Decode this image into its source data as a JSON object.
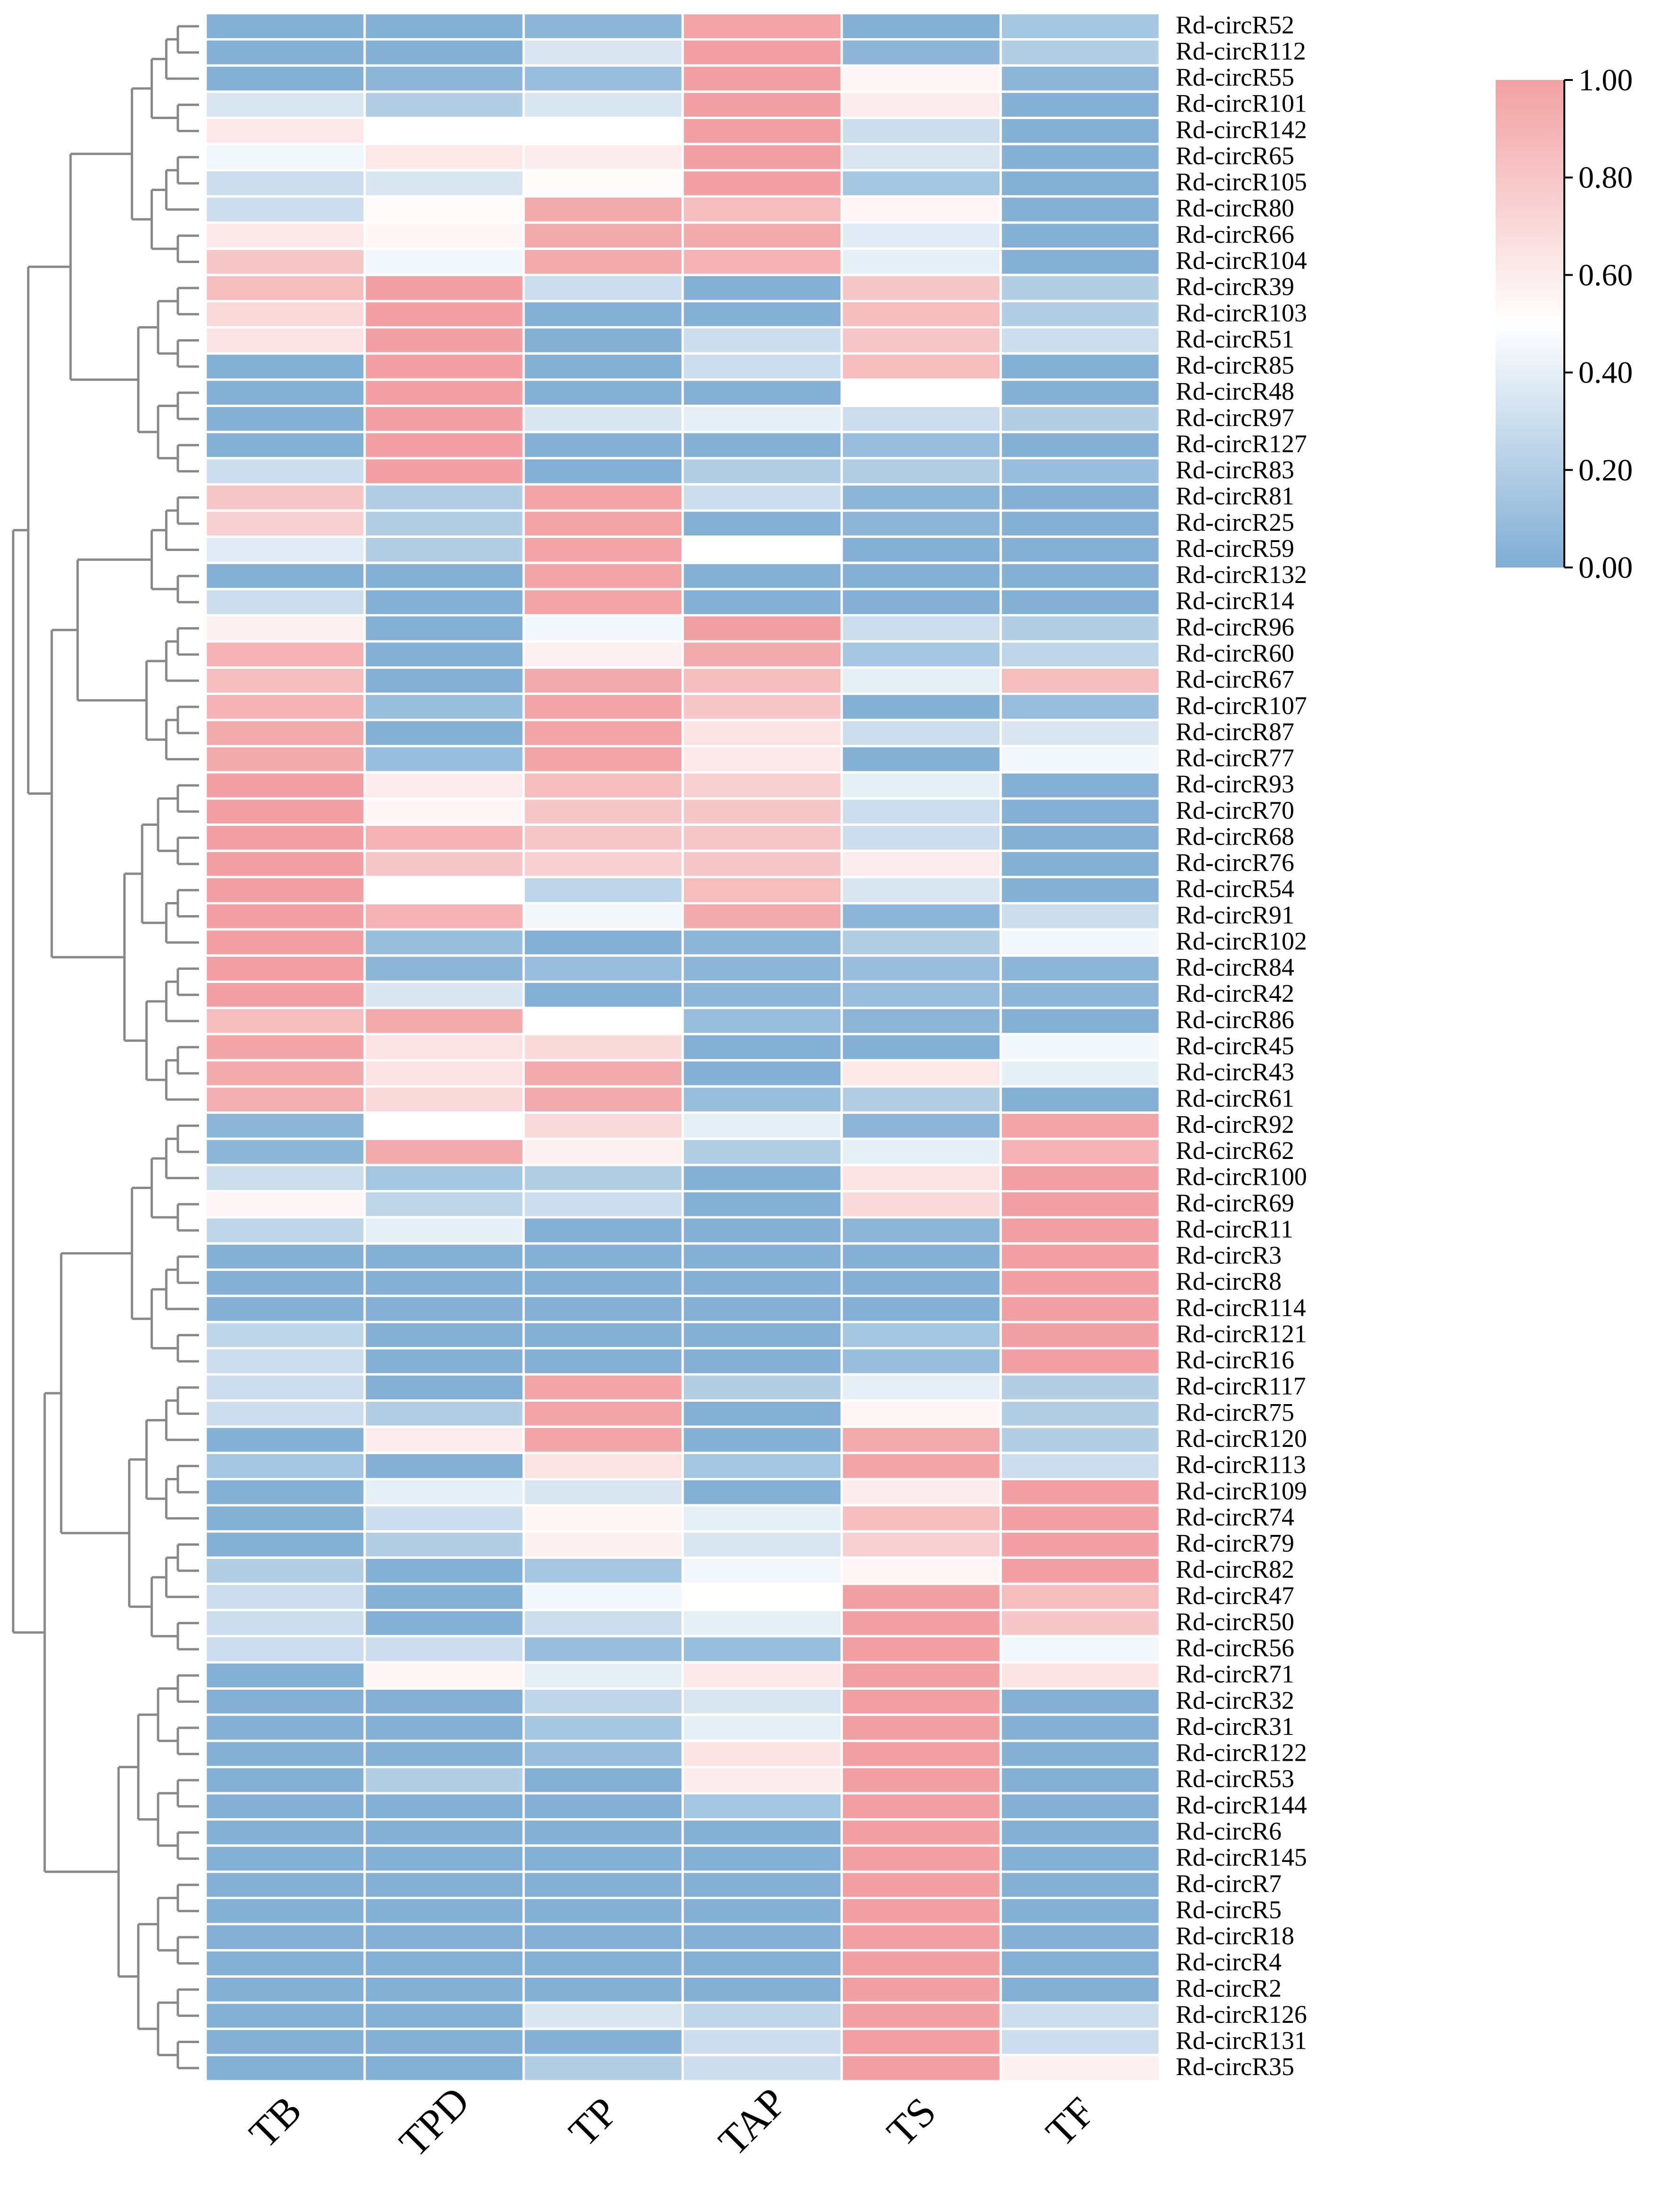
{
  "chart_data": {
    "type": "heatmap",
    "title": "",
    "xlabel": "",
    "ylabel": "",
    "x_categories": [
      "TB",
      "TPD",
      "TP",
      "TAP",
      "TS",
      "TF"
    ],
    "y_categories": [
      "Rd-circR52",
      "Rd-circR112",
      "Rd-circR55",
      "Rd-circR101",
      "Rd-circR142",
      "Rd-circR65",
      "Rd-circR105",
      "Rd-circR80",
      "Rd-circR66",
      "Rd-circR104",
      "Rd-circR39",
      "Rd-circR103",
      "Rd-circR51",
      "Rd-circR85",
      "Rd-circR48",
      "Rd-circR97",
      "Rd-circR127",
      "Rd-circR83",
      "Rd-circR81",
      "Rd-circR25",
      "Rd-circR59",
      "Rd-circR132",
      "Rd-circR14",
      "Rd-circR96",
      "Rd-circR60",
      "Rd-circR67",
      "Rd-circR107",
      "Rd-circR87",
      "Rd-circR77",
      "Rd-circR93",
      "Rd-circR70",
      "Rd-circR68",
      "Rd-circR76",
      "Rd-circR54",
      "Rd-circR91",
      "Rd-circR102",
      "Rd-circR84",
      "Rd-circR42",
      "Rd-circR86",
      "Rd-circR45",
      "Rd-circR43",
      "Rd-circR61",
      "Rd-circR92",
      "Rd-circR62",
      "Rd-circR100",
      "Rd-circR69",
      "Rd-circR11",
      "Rd-circR3",
      "Rd-circR8",
      "Rd-circR114",
      "Rd-circR121",
      "Rd-circR16",
      "Rd-circR117",
      "Rd-circR75",
      "Rd-circR120",
      "Rd-circR113",
      "Rd-circR109",
      "Rd-circR74",
      "Rd-circR79",
      "Rd-circR82",
      "Rd-circR47",
      "Rd-circR50",
      "Rd-circR56",
      "Rd-circR71",
      "Rd-circR32",
      "Rd-circR31",
      "Rd-circR122",
      "Rd-circR53",
      "Rd-circR144",
      "Rd-circR6",
      "Rd-circR145",
      "Rd-circR7",
      "Rd-circR5",
      "Rd-circR18",
      "Rd-circR4",
      "Rd-circR2",
      "Rd-circR126",
      "Rd-circR131",
      "Rd-circR35"
    ],
    "values": [
      [
        0.02,
        0.02,
        0.05,
        0.98,
        0.02,
        0.15
      ],
      [
        0.02,
        0.02,
        0.35,
        1.0,
        0.05,
        0.2
      ],
      [
        0.02,
        0.05,
        0.1,
        1.0,
        0.55,
        0.05
      ],
      [
        0.35,
        0.2,
        0.35,
        1.0,
        0.6,
        0.02
      ],
      [
        0.62,
        0.5,
        0.5,
        1.0,
        0.3,
        0.02
      ],
      [
        0.45,
        0.62,
        0.6,
        1.0,
        0.35,
        0.02
      ],
      [
        0.3,
        0.35,
        0.52,
        1.0,
        0.15,
        0.02
      ],
      [
        0.3,
        0.52,
        0.95,
        0.85,
        0.55,
        0.02
      ],
      [
        0.62,
        0.55,
        0.95,
        0.95,
        0.38,
        0.02
      ],
      [
        0.8,
        0.45,
        0.95,
        0.9,
        0.4,
        0.02
      ],
      [
        0.85,
        1.0,
        0.3,
        0.02,
        0.8,
        0.2
      ],
      [
        0.7,
        1.0,
        0.02,
        0.02,
        0.85,
        0.2
      ],
      [
        0.65,
        1.0,
        0.02,
        0.3,
        0.8,
        0.3
      ],
      [
        0.02,
        1.0,
        0.02,
        0.3,
        0.85,
        0.02
      ],
      [
        0.02,
        1.0,
        0.02,
        0.02,
        0.5,
        0.02
      ],
      [
        0.02,
        1.0,
        0.35,
        0.4,
        0.3,
        0.2
      ],
      [
        0.02,
        1.0,
        0.02,
        0.02,
        0.1,
        0.02
      ],
      [
        0.3,
        1.0,
        0.02,
        0.2,
        0.2,
        0.1
      ],
      [
        0.8,
        0.2,
        0.98,
        0.3,
        0.05,
        0.02
      ],
      [
        0.75,
        0.2,
        0.98,
        0.02,
        0.05,
        0.02
      ],
      [
        0.38,
        0.2,
        0.98,
        0.5,
        0.02,
        0.02
      ],
      [
        0.02,
        0.02,
        0.98,
        0.02,
        0.02,
        0.02
      ],
      [
        0.3,
        0.02,
        0.98,
        0.02,
        0.02,
        0.02
      ],
      [
        0.58,
        0.02,
        0.45,
        1.0,
        0.3,
        0.2
      ],
      [
        0.9,
        0.02,
        0.58,
        0.95,
        0.15,
        0.25
      ],
      [
        0.85,
        0.02,
        0.95,
        0.85,
        0.4,
        0.85
      ],
      [
        0.9,
        0.1,
        0.98,
        0.8,
        0.02,
        0.1
      ],
      [
        0.95,
        0.02,
        0.98,
        0.65,
        0.3,
        0.35
      ],
      [
        0.95,
        0.1,
        0.98,
        0.62,
        0.02,
        0.45
      ],
      [
        1.0,
        0.6,
        0.85,
        0.75,
        0.4,
        0.02
      ],
      [
        1.0,
        0.55,
        0.8,
        0.8,
        0.3,
        0.02
      ],
      [
        1.0,
        0.9,
        0.8,
        0.8,
        0.3,
        0.02
      ],
      [
        1.0,
        0.8,
        0.75,
        0.8,
        0.6,
        0.02
      ],
      [
        1.0,
        0.5,
        0.25,
        0.85,
        0.35,
        0.02
      ],
      [
        1.0,
        0.9,
        0.45,
        0.95,
        0.05,
        0.3
      ],
      [
        1.0,
        0.1,
        0.02,
        0.05,
        0.2,
        0.45
      ],
      [
        1.0,
        0.05,
        0.1,
        0.05,
        0.1,
        0.05
      ],
      [
        1.0,
        0.35,
        0.02,
        0.05,
        0.1,
        0.05
      ],
      [
        0.85,
        0.95,
        0.5,
        0.1,
        0.05,
        0.02
      ],
      [
        0.98,
        0.65,
        0.7,
        0.02,
        0.02,
        0.45
      ],
      [
        0.95,
        0.65,
        0.95,
        0.02,
        0.62,
        0.4
      ],
      [
        0.92,
        0.7,
        0.95,
        0.1,
        0.2,
        0.02
      ],
      [
        0.05,
        0.5,
        0.7,
        0.4,
        0.05,
        0.98
      ],
      [
        0.05,
        0.95,
        0.58,
        0.2,
        0.4,
        0.9
      ],
      [
        0.3,
        0.15,
        0.2,
        0.02,
        0.65,
        1.0
      ],
      [
        0.55,
        0.25,
        0.3,
        0.02,
        0.7,
        1.0
      ],
      [
        0.25,
        0.4,
        0.02,
        0.02,
        0.05,
        1.0
      ],
      [
        0.02,
        0.02,
        0.02,
        0.02,
        0.02,
        1.0
      ],
      [
        0.02,
        0.02,
        0.02,
        0.02,
        0.02,
        1.0
      ],
      [
        0.02,
        0.02,
        0.02,
        0.02,
        0.02,
        1.0
      ],
      [
        0.25,
        0.02,
        0.02,
        0.02,
        0.15,
        1.0
      ],
      [
        0.3,
        0.02,
        0.02,
        0.02,
        0.1,
        1.0
      ],
      [
        0.3,
        0.02,
        0.98,
        0.2,
        0.4,
        0.2
      ],
      [
        0.3,
        0.2,
        0.98,
        0.02,
        0.55,
        0.2
      ],
      [
        0.02,
        0.6,
        0.98,
        0.02,
        0.95,
        0.2
      ],
      [
        0.15,
        0.02,
        0.65,
        0.15,
        0.98,
        0.3
      ],
      [
        0.02,
        0.4,
        0.35,
        0.02,
        0.6,
        1.0
      ],
      [
        0.02,
        0.3,
        0.55,
        0.4,
        0.85,
        1.0
      ],
      [
        0.02,
        0.2,
        0.58,
        0.35,
        0.75,
        1.0
      ],
      [
        0.2,
        0.02,
        0.15,
        0.45,
        0.55,
        1.0
      ],
      [
        0.3,
        0.02,
        0.45,
        0.5,
        1.0,
        0.85
      ],
      [
        0.3,
        0.02,
        0.3,
        0.4,
        1.0,
        0.8
      ],
      [
        0.3,
        0.3,
        0.1,
        0.1,
        1.0,
        0.45
      ],
      [
        0.02,
        0.55,
        0.4,
        0.62,
        1.0,
        0.65
      ],
      [
        0.02,
        0.02,
        0.25,
        0.35,
        1.0,
        0.02
      ],
      [
        0.02,
        0.02,
        0.15,
        0.4,
        1.0,
        0.02
      ],
      [
        0.02,
        0.02,
        0.1,
        0.65,
        1.0,
        0.02
      ],
      [
        0.02,
        0.2,
        0.02,
        0.6,
        1.0,
        0.02
      ],
      [
        0.02,
        0.02,
        0.02,
        0.15,
        1.0,
        0.02
      ],
      [
        0.02,
        0.02,
        0.02,
        0.02,
        1.0,
        0.02
      ],
      [
        0.02,
        0.02,
        0.02,
        0.02,
        1.0,
        0.02
      ],
      [
        0.02,
        0.02,
        0.02,
        0.02,
        1.0,
        0.02
      ],
      [
        0.02,
        0.02,
        0.02,
        0.02,
        1.0,
        0.02
      ],
      [
        0.02,
        0.02,
        0.02,
        0.02,
        1.0,
        0.02
      ],
      [
        0.02,
        0.02,
        0.02,
        0.02,
        1.0,
        0.02
      ],
      [
        0.02,
        0.02,
        0.02,
        0.02,
        1.0,
        0.02
      ],
      [
        0.02,
        0.02,
        0.35,
        0.25,
        1.0,
        0.3
      ],
      [
        0.02,
        0.02,
        0.02,
        0.3,
        1.0,
        0.3
      ],
      [
        0.02,
        0.02,
        0.2,
        0.3,
        1.0,
        0.58
      ]
    ],
    "colorbar": {
      "min": 0.0,
      "max": 1.0,
      "ticks": [
        "0.00",
        "0.20",
        "0.40",
        "0.60",
        "0.80",
        "1.00"
      ],
      "low_color": "#7fadd4",
      "mid_color": "#ffffff",
      "high_color": "#f2a0a3",
      "mid_value": 0.5
    },
    "grid": false,
    "legend": "colorbar-right",
    "dendrogram": "rows-left",
    "line_color": "#888888"
  }
}
